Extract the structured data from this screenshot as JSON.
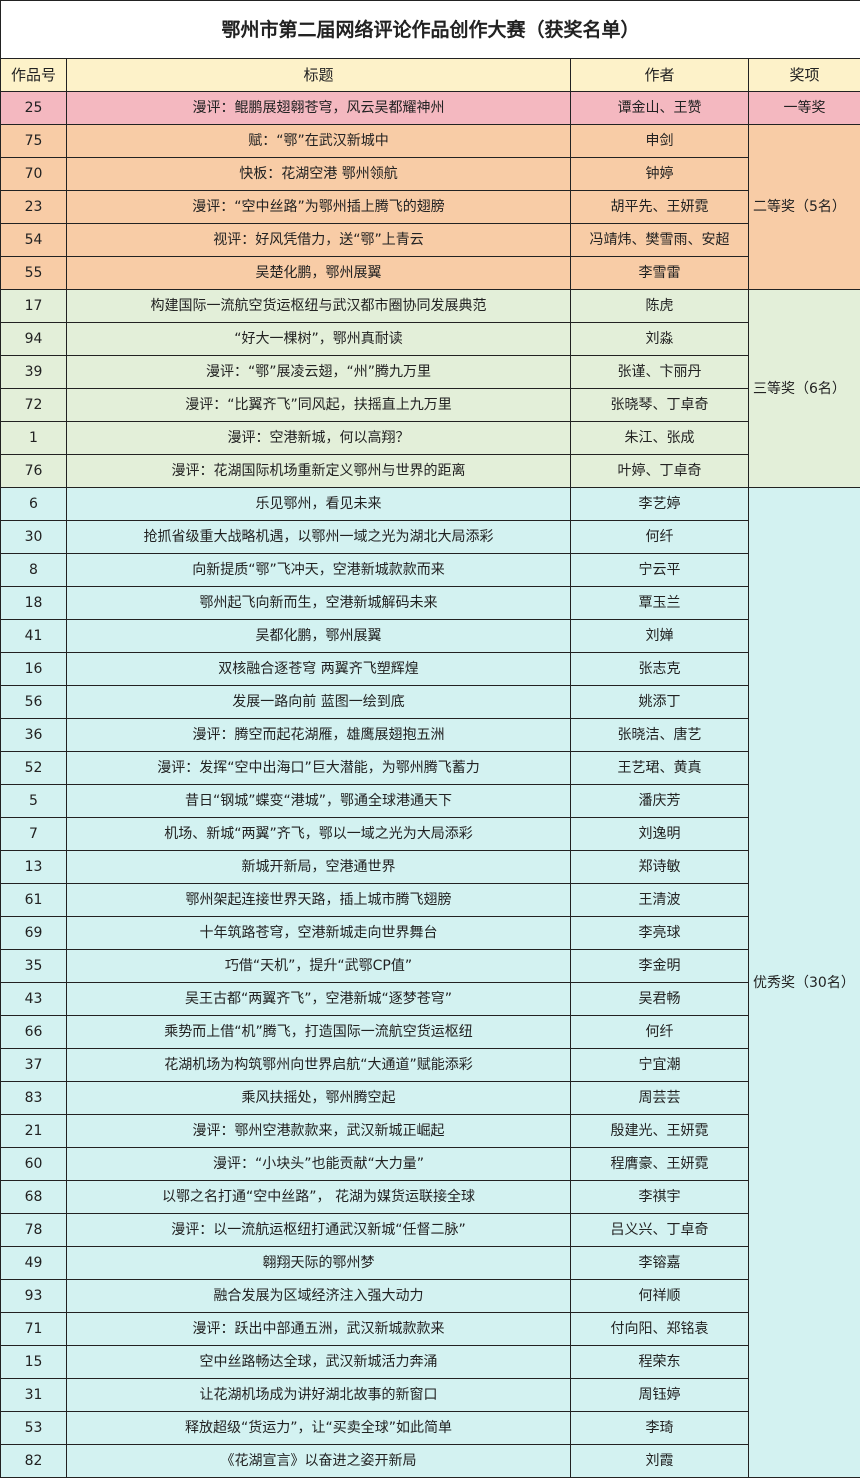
{
  "title": "鄂州市第二届网络评论作品创作大赛（获奖名单）",
  "headers": {
    "id": "作品号",
    "title": "标题",
    "author": "作者",
    "award": "奖项"
  },
  "colors": {
    "header": "#fdf2c9",
    "first": "#f4b8c0",
    "second": "#f8cca6",
    "third": "#e3efd9",
    "excellent": "#d3f2f1"
  },
  "groups": [
    {
      "award": "一等奖",
      "cls": "a1",
      "rows": [
        {
          "id": "25",
          "title": "漫评：鲲鹏展翅翱苍穹，风云吴都耀神州",
          "author": "谭金山、王赞"
        }
      ]
    },
    {
      "award": "二等奖（5名）",
      "cls": "a2",
      "rows": [
        {
          "id": "75",
          "title": "赋：“鄂”在武汉新城中",
          "author": "申剑"
        },
        {
          "id": "70",
          "title": "快板：花湖空港 鄂州领航",
          "author": "钟婷"
        },
        {
          "id": "23",
          "title": "漫评：“空中丝路”为鄂州插上腾飞的翅膀",
          "author": "胡平先、王妍霓"
        },
        {
          "id": "54",
          "title": "视评：好风凭借力，送“鄂”上青云",
          "author": "冯靖炜、樊雪雨、安超"
        },
        {
          "id": "55",
          "title": "吴楚化鹏，鄂州展翼",
          "author": "李雪雷"
        }
      ]
    },
    {
      "award": "三等奖（6名）",
      "cls": "a3",
      "rows": [
        {
          "id": "17",
          "title": "构建国际一流航空货运枢纽与武汉都市圈协同发展典范",
          "author": "陈虎"
        },
        {
          "id": "94",
          "title": "“好大一棵树”，鄂州真耐读",
          "author": "刘淼"
        },
        {
          "id": "39",
          "title": "漫评：“鄂”展凌云翅，“州”腾九万里",
          "author": "张谨、卞丽丹"
        },
        {
          "id": "72",
          "title": "漫评：“比翼齐飞”同风起，扶摇直上九万里",
          "author": "张晓琴、丁卓奇"
        },
        {
          "id": "1",
          "title": "漫评：空港新城，何以高翔？",
          "author": "朱江、张成"
        },
        {
          "id": "76",
          "title": "漫评：花湖国际机场重新定义鄂州与世界的距离",
          "author": "叶婷、丁卓奇"
        }
      ]
    },
    {
      "award": "优秀奖（30名）",
      "cls": "a4",
      "rows": [
        {
          "id": "6",
          "title": "乐见鄂州，看见未来",
          "author": "李艺婷"
        },
        {
          "id": "30",
          "title": "抢抓省级重大战略机遇，以鄂州一域之光为湖北大局添彩",
          "author": "何纤"
        },
        {
          "id": "8",
          "title": "向新提质“鄂”飞冲天，空港新城款款而来",
          "author": "宁云平"
        },
        {
          "id": "18",
          "title": "鄂州起飞向新而生，空港新城解码未来",
          "author": "覃玉兰"
        },
        {
          "id": "41",
          "title": "吴都化鹏，鄂州展翼",
          "author": "刘婵"
        },
        {
          "id": "16",
          "title": "双核融合逐苍穹 两翼齐飞塑辉煌",
          "author": "张志克"
        },
        {
          "id": "56",
          "title": "发展一路向前 蓝图一绘到底",
          "author": "姚添丁"
        },
        {
          "id": "36",
          "title": "漫评：腾空而起花湖雁，雄鹰展翅抱五洲",
          "author": "张晓洁、唐艺"
        },
        {
          "id": "52",
          "title": "漫评：发挥“空中出海口”巨大潜能，为鄂州腾飞蓄力",
          "author": "王艺珺、黄真"
        },
        {
          "id": "5",
          "title": "昔日“钢城”蝶变“港城”，鄂通全球港通天下",
          "author": "潘庆芳"
        },
        {
          "id": "7",
          "title": "机场、新城“两翼”齐飞，鄂以一域之光为大局添彩",
          "author": "刘逸明"
        },
        {
          "id": "13",
          "title": "新城开新局，空港通世界",
          "author": "郑诗敏"
        },
        {
          "id": "61",
          "title": "鄂州架起连接世界天路，插上城市腾飞翅膀",
          "author": "王清波"
        },
        {
          "id": "69",
          "title": "十年筑路苍穹，空港新城走向世界舞台",
          "author": "李亮球"
        },
        {
          "id": "35",
          "title": "巧借“天机”，提升“武鄂CP值”",
          "author": "李金明"
        },
        {
          "id": "43",
          "title": "吴王古都“两翼齐飞”，空港新城“逐梦苍穹”",
          "author": "吴君畅"
        },
        {
          "id": "66",
          "title": "乘势而上借“机”腾飞，打造国际一流航空货运枢纽",
          "author": "何纤"
        },
        {
          "id": "37",
          "title": "花湖机场为构筑鄂州向世界启航“大通道”赋能添彩",
          "author": "宁宜潮"
        },
        {
          "id": "83",
          "title": "乘风扶摇处，鄂州腾空起",
          "author": "周芸芸"
        },
        {
          "id": "21",
          "title": "漫评：鄂州空港款款来，武汉新城正崛起",
          "author": "殷建光、王妍霓"
        },
        {
          "id": "60",
          "title": "漫评：“小块头”也能贡献“大力量”",
          "author": "程膺豪、王妍霓"
        },
        {
          "id": "68",
          "title": "以鄂之名打通“空中丝路”， 花湖为媒货运联接全球",
          "author": "李祺宇"
        },
        {
          "id": "78",
          "title": "漫评：以一流航运枢纽打通武汉新城“任督二脉”",
          "author": "吕义兴、丁卓奇"
        },
        {
          "id": "49",
          "title": "翱翔天际的鄂州梦",
          "author": "李镕嘉"
        },
        {
          "id": "93",
          "title": "融合发展为区域经济注入强大动力",
          "author": "何祥顺"
        },
        {
          "id": "71",
          "title": "漫评：跃出中部通五洲，武汉新城款款来",
          "author": "付向阳、郑铭袁"
        },
        {
          "id": "15",
          "title": "空中丝路畅达全球，武汉新城活力奔涌",
          "author": "程荣东"
        },
        {
          "id": "31",
          "title": "让花湖机场成为讲好湖北故事的新窗口",
          "author": "周钰婷"
        },
        {
          "id": "53",
          "title": "释放超级“货运力”，让“买卖全球”如此简单",
          "author": "李琦"
        },
        {
          "id": "82",
          "title": "《花湖宣言》以奋进之姿开新局",
          "author": "刘霞"
        }
      ]
    }
  ]
}
